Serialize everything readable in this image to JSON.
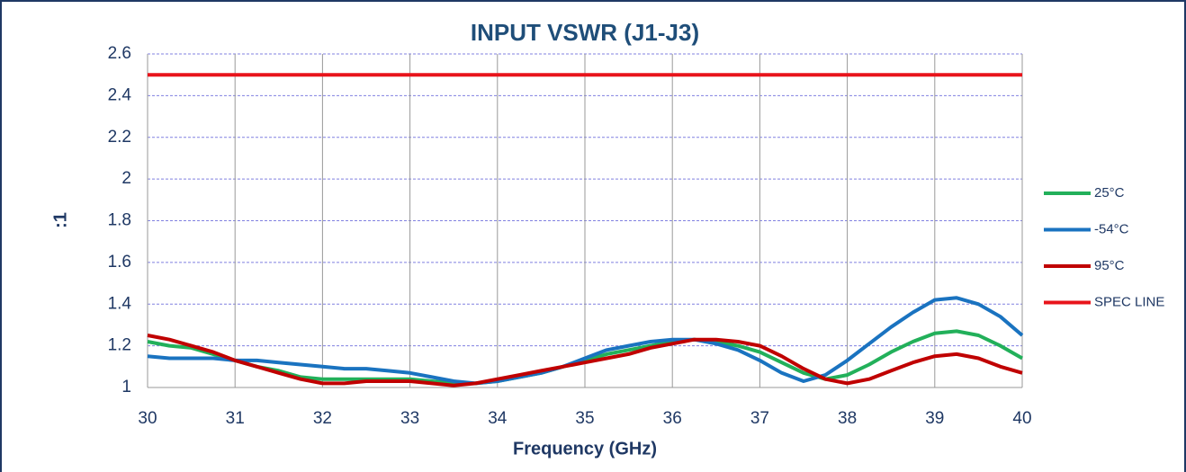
{
  "chart_data": {
    "type": "line",
    "title": "INPUT VSWR (J1-J3)",
    "x_label": "Frequency (GHz)",
    "y_label": ":1",
    "x": [
      30,
      30.25,
      30.5,
      30.75,
      31,
      31.25,
      31.5,
      31.75,
      32,
      32.25,
      32.5,
      32.75,
      33,
      33.25,
      33.5,
      33.75,
      34,
      34.25,
      34.5,
      34.75,
      35,
      35.25,
      35.5,
      35.75,
      36,
      36.25,
      36.5,
      36.75,
      37,
      37.25,
      37.5,
      37.75,
      38,
      38.25,
      38.5,
      38.75,
      39,
      39.25,
      39.5,
      39.75,
      40
    ],
    "series": [
      {
        "name": "25°C",
        "color": "#22b05a",
        "values": [
          1.22,
          1.2,
          1.19,
          1.16,
          1.13,
          1.1,
          1.08,
          1.05,
          1.04,
          1.04,
          1.04,
          1.04,
          1.04,
          1.03,
          1.02,
          1.02,
          1.03,
          1.05,
          1.07,
          1.1,
          1.13,
          1.16,
          1.18,
          1.2,
          1.22,
          1.23,
          1.22,
          1.2,
          1.17,
          1.12,
          1.07,
          1.04,
          1.06,
          1.11,
          1.17,
          1.22,
          1.26,
          1.27,
          1.25,
          1.2,
          1.14
        ]
      },
      {
        "name": "-54°C",
        "color": "#1a73c0",
        "values": [
          1.15,
          1.14,
          1.14,
          1.14,
          1.13,
          1.13,
          1.12,
          1.11,
          1.1,
          1.09,
          1.09,
          1.08,
          1.07,
          1.05,
          1.03,
          1.02,
          1.03,
          1.05,
          1.07,
          1.1,
          1.14,
          1.18,
          1.2,
          1.22,
          1.23,
          1.23,
          1.21,
          1.18,
          1.13,
          1.07,
          1.03,
          1.06,
          1.13,
          1.21,
          1.29,
          1.36,
          1.42,
          1.43,
          1.4,
          1.34,
          1.25
        ]
      },
      {
        "name": "95°C",
        "color": "#c00000",
        "values": [
          1.25,
          1.23,
          1.2,
          1.17,
          1.13,
          1.1,
          1.07,
          1.04,
          1.02,
          1.02,
          1.03,
          1.03,
          1.03,
          1.02,
          1.01,
          1.02,
          1.04,
          1.06,
          1.08,
          1.1,
          1.12,
          1.14,
          1.16,
          1.19,
          1.21,
          1.23,
          1.23,
          1.22,
          1.2,
          1.15,
          1.09,
          1.04,
          1.02,
          1.04,
          1.08,
          1.12,
          1.15,
          1.16,
          1.14,
          1.1,
          1.07
        ]
      },
      {
        "name": "SPEC LINE",
        "color": "#e8141b",
        "values": [
          2.5,
          2.5,
          2.5,
          2.5,
          2.5,
          2.5,
          2.5,
          2.5,
          2.5,
          2.5,
          2.5,
          2.5,
          2.5,
          2.5,
          2.5,
          2.5,
          2.5,
          2.5,
          2.5,
          2.5,
          2.5,
          2.5,
          2.5,
          2.5,
          2.5,
          2.5,
          2.5,
          2.5,
          2.5,
          2.5,
          2.5,
          2.5,
          2.5,
          2.5,
          2.5,
          2.5,
          2.5,
          2.5,
          2.5,
          2.5,
          2.5
        ]
      }
    ],
    "xlim": [
      30,
      40
    ],
    "xticks": [
      30,
      31,
      32,
      33,
      34,
      35,
      36,
      37,
      38,
      39,
      40
    ],
    "ylim": [
      1,
      2.6
    ],
    "yticks": [
      1,
      1.2,
      1.4,
      1.6,
      1.8,
      2,
      2.2,
      2.4,
      2.6
    ],
    "grid": true,
    "legend": "right"
  }
}
